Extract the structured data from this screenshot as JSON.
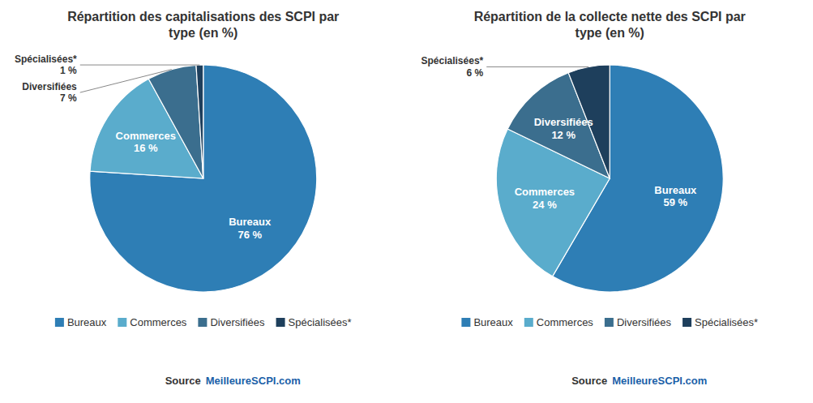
{
  "chart_data": [
    {
      "type": "pie",
      "title": "Répartition des capitalisations des SCPI par\ntype (en %)",
      "categories": [
        "Bureaux",
        "Commerces",
        "Diversifiées",
        "Spécialisées*"
      ],
      "values": [
        76,
        16,
        7,
        1
      ],
      "value_labels": [
        "76 %",
        "16 %",
        "7 %",
        "1 %"
      ],
      "colors": [
        "#2e7eb5",
        "#5aaccc",
        "#3b6e8e",
        "#1e3f5c"
      ],
      "data_labels": true,
      "legend": "bottom",
      "annotations": [
        {
          "text": "Source",
          "color": "#333333"
        },
        {
          "text": "MeilleureSCPI.com",
          "color": "#1a5fa8"
        }
      ]
    },
    {
      "type": "pie",
      "title": "Répartition de la collecte nette des SCPI par\ntype (en %)",
      "categories": [
        "Bureaux",
        "Commerces",
        "Diversifiées",
        "Spécialisées*"
      ],
      "values": [
        59,
        24,
        12,
        6
      ],
      "value_labels": [
        "59 %",
        "24 %",
        "12 %",
        "6 %"
      ],
      "colors": [
        "#2e7eb5",
        "#5aaccc",
        "#3b6e8e",
        "#1e3f5c"
      ],
      "data_labels": true,
      "legend": "bottom",
      "annotations": [
        {
          "text": "Source",
          "color": "#333333"
        },
        {
          "text": "MeilleureSCPI.com",
          "color": "#1a5fa8"
        }
      ]
    }
  ]
}
